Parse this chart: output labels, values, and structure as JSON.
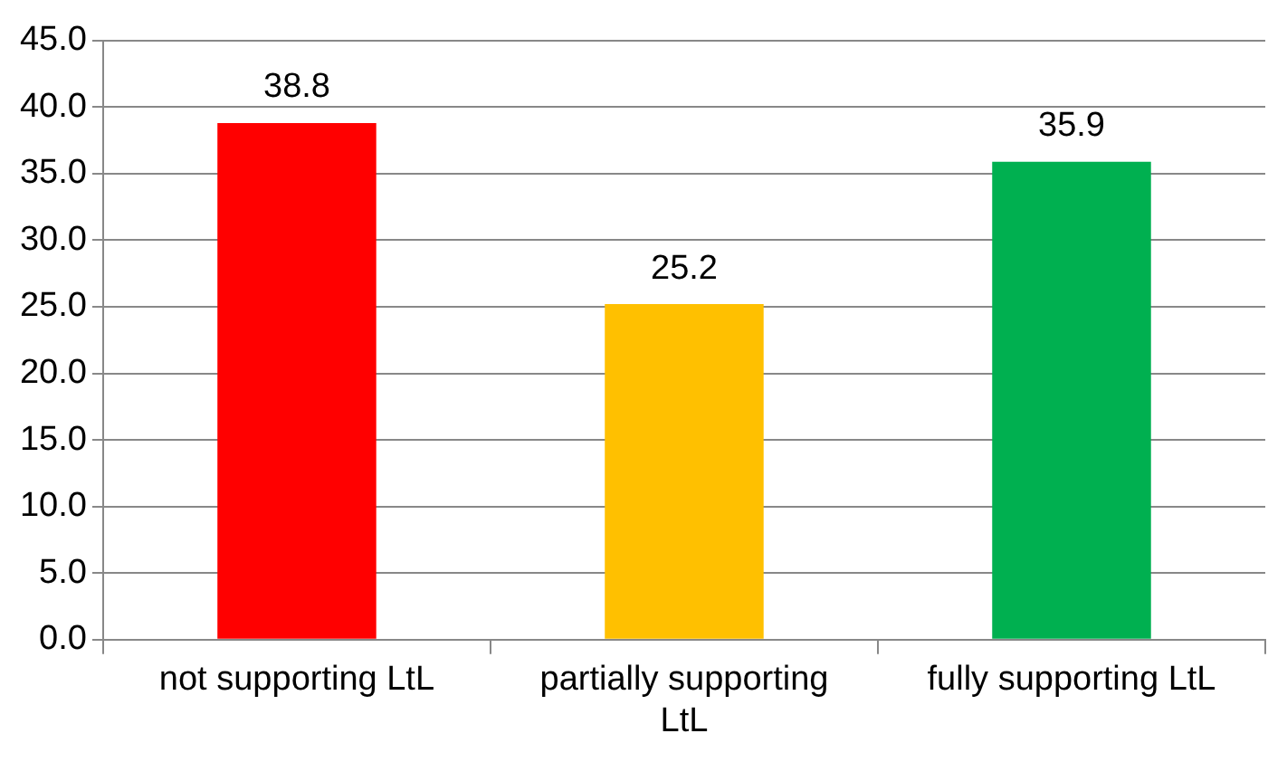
{
  "chart_data": {
    "type": "bar",
    "categories": [
      "not supporting LtL",
      "partially supporting LtL",
      "fully supporting LtL"
    ],
    "values": [
      38.8,
      25.2,
      35.9
    ],
    "colors": [
      "#ff0000",
      "#ffc000",
      "#00b050"
    ],
    "ylim": [
      0,
      45
    ],
    "yticks": [
      {
        "value": 0,
        "label": "0.0"
      },
      {
        "value": 5,
        "label": "5.0"
      },
      {
        "value": 10,
        "label": "10.0"
      },
      {
        "value": 15,
        "label": "15.0"
      },
      {
        "value": 20,
        "label": "20.0"
      },
      {
        "value": 25,
        "label": "25.0"
      },
      {
        "value": 30,
        "label": "30.0"
      },
      {
        "value": 35,
        "label": "35.0"
      },
      {
        "value": 40,
        "label": "40.0"
      },
      {
        "value": 45,
        "label": "45.0"
      }
    ],
    "grid": "y",
    "data_labels": true,
    "legend": false
  }
}
